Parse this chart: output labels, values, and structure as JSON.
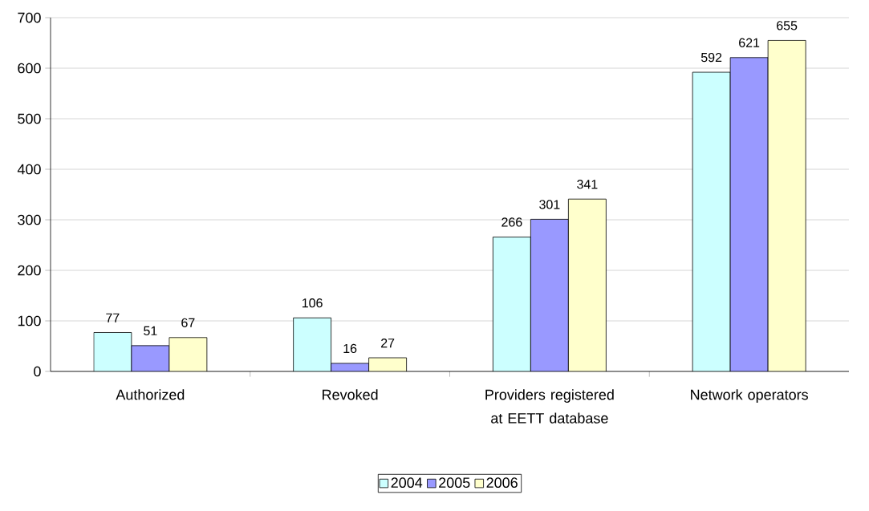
{
  "chart_data": {
    "type": "bar",
    "categories": [
      "Authorized",
      "Revoked",
      "Providers registered at EETT database",
      "Network operators"
    ],
    "series": [
      {
        "name": "2004",
        "color": "#ccffff",
        "values": [
          77,
          106,
          266,
          592
        ]
      },
      {
        "name": "2005",
        "color": "#9999ff",
        "values": [
          51,
          16,
          301,
          621
        ]
      },
      {
        "name": "2006",
        "color": "#ffffcc",
        "values": [
          67,
          27,
          341,
          655
        ]
      }
    ],
    "ylim": [
      0,
      700
    ],
    "yticks": [
      0,
      100,
      200,
      300,
      400,
      500,
      600,
      700
    ],
    "grid": "y",
    "legend": "bottom",
    "data_labels": true
  }
}
